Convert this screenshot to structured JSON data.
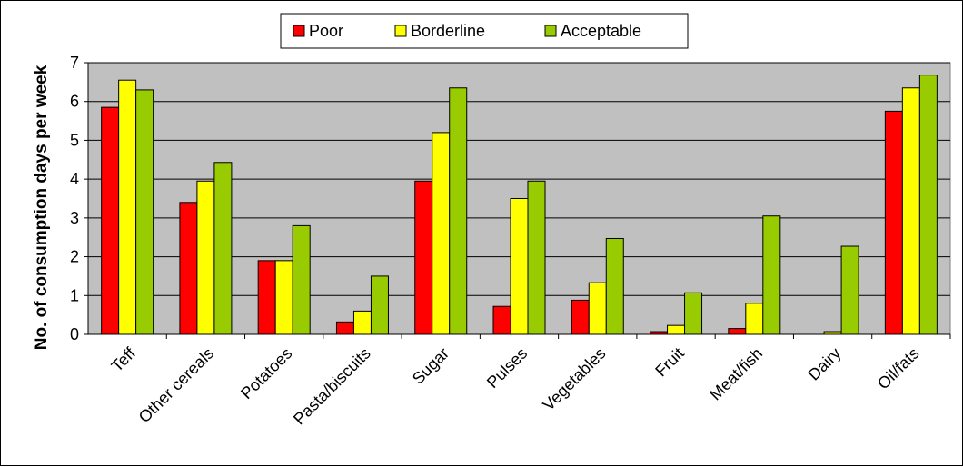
{
  "chart_data": {
    "type": "bar",
    "ylabel": "No. of consumption days per week",
    "xlabel": "",
    "ylim": [
      0,
      7
    ],
    "yticks": [
      0,
      1,
      2,
      3,
      4,
      5,
      6,
      7
    ],
    "grid": true,
    "legend_position": "top",
    "plot_background": "#c0c0c0",
    "categories": [
      "Teff",
      "Other cereals",
      "Potatoes",
      "Pasta/biscuits",
      "Sugar",
      "Pulses",
      "Vegetables",
      "Fruit",
      "Meat/fish",
      "Dairy",
      "Oil/fats"
    ],
    "series": [
      {
        "name": "Poor",
        "color": "#ff0000",
        "values": [
          5.85,
          3.4,
          1.9,
          0.32,
          3.95,
          0.72,
          0.88,
          0.07,
          0.15,
          0.0,
          5.75
        ]
      },
      {
        "name": "Borderline",
        "color": "#ffff00",
        "values": [
          6.55,
          3.95,
          1.9,
          0.6,
          5.2,
          3.5,
          1.33,
          0.23,
          0.8,
          0.07,
          6.35
        ]
      },
      {
        "name": "Acceptable",
        "color": "#99cc00",
        "values": [
          6.3,
          4.43,
          2.8,
          1.5,
          6.35,
          3.95,
          2.47,
          1.07,
          3.05,
          2.27,
          6.68
        ]
      }
    ]
  }
}
